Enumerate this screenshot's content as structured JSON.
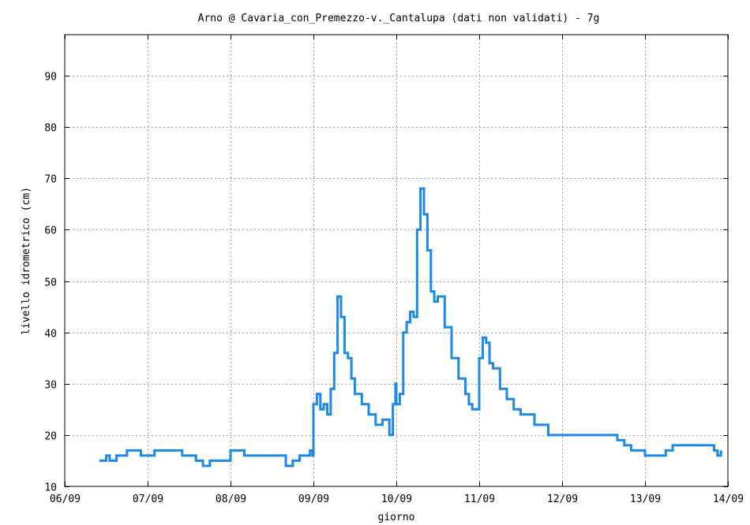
{
  "chart_data": {
    "type": "line",
    "title": "Arno @ Cavaria_con_Premezzo-v._Cantalupa (dati non validati) - 7g",
    "xlabel": "giorno",
    "ylabel": "livello idrometrico (cm)",
    "xlim": [
      "06/09",
      "14/09"
    ],
    "ylim": [
      10,
      98
    ],
    "x_ticks": [
      "06/09",
      "07/09",
      "08/09",
      "09/09",
      "10/09",
      "11/09",
      "12/09",
      "13/09",
      "14/09"
    ],
    "y_ticks": [
      10,
      20,
      30,
      40,
      50,
      60,
      70,
      80,
      90
    ],
    "grid": true,
    "legend": "none",
    "series_color": "#1e88e5",
    "series": [
      {
        "x": [
          "06/09 10:00",
          "06/09 11:00",
          "06/09 12:00",
          "06/09 13:00",
          "06/09 15:00",
          "06/09 17:00",
          "06/09 18:00",
          "06/09 20:00",
          "06/09 22:00",
          "07/09 02:00",
          "07/09 06:00",
          "07/09 10:00",
          "07/09 14:00",
          "07/09 16:00",
          "07/09 18:00",
          "07/09 20:00",
          "08/09 00:00",
          "08/09 04:00",
          "08/09 08:00",
          "08/09 12:00",
          "08/09 16:00",
          "08/09 18:00",
          "08/09 20:00",
          "08/09 22:00",
          "08/09 23:00",
          "08/09 23:45",
          "09/09 00:00",
          "09/09 01:00",
          "09/09 02:00",
          "09/09 03:00",
          "09/09 04:00",
          "09/09 05:00",
          "09/09 06:00",
          "09/09 07:00",
          "09/09 08:00",
          "09/09 09:00",
          "09/09 10:00",
          "09/09 11:00",
          "09/09 12:00",
          "09/09 14:00",
          "09/09 16:00",
          "09/09 18:00",
          "09/09 20:00",
          "09/09 22:00",
          "09/09 23:00",
          "09/09 23:45",
          "10/09 00:00",
          "10/09 01:00",
          "10/09 02:00",
          "10/09 03:00",
          "10/09 04:00",
          "10/09 05:00",
          "10/09 06:00",
          "10/09 07:00",
          "10/09 08:00",
          "10/09 09:00",
          "10/09 10:00",
          "10/09 11:00",
          "10/09 12:00",
          "10/09 14:00",
          "10/09 16:00",
          "10/09 18:00",
          "10/09 20:00",
          "10/09 21:00",
          "10/09 22:00",
          "10/09 23:00",
          "11/09 00:00",
          "11/09 01:00",
          "11/09 02:00",
          "11/09 03:00",
          "11/09 04:00",
          "11/09 06:00",
          "11/09 08:00",
          "11/09 10:00",
          "11/09 12:00",
          "11/09 16:00",
          "11/09 20:00",
          "12/09 00:00",
          "12/09 06:00",
          "12/09 12:00",
          "12/09 16:00",
          "12/09 18:00",
          "12/09 20:00",
          "13/09 00:00",
          "13/09 06:00",
          "13/09 08:00",
          "13/09 12:00",
          "13/09 18:00",
          "13/09 20:00",
          "13/09 21:00",
          "13/09 22:00"
        ],
        "y": [
          15,
          15,
          16,
          15,
          16,
          16,
          17,
          17,
          16,
          17,
          17,
          16,
          15,
          14,
          15,
          15,
          17,
          16,
          16,
          16,
          14,
          15,
          16,
          16,
          17,
          16,
          26,
          28,
          25,
          26,
          24,
          29,
          36,
          47,
          43,
          36,
          35,
          31,
          28,
          26,
          24,
          22,
          23,
          20,
          26,
          30,
          26,
          28,
          40,
          42,
          44,
          43,
          60,
          68,
          63,
          56,
          48,
          46,
          47,
          41,
          35,
          31,
          28,
          26,
          25,
          25,
          35,
          39,
          38,
          34,
          33,
          29,
          27,
          25,
          24,
          22,
          20,
          20,
          20,
          20,
          19,
          18,
          17,
          16,
          17,
          18,
          18,
          18,
          17,
          16,
          17
        ]
      }
    ]
  }
}
